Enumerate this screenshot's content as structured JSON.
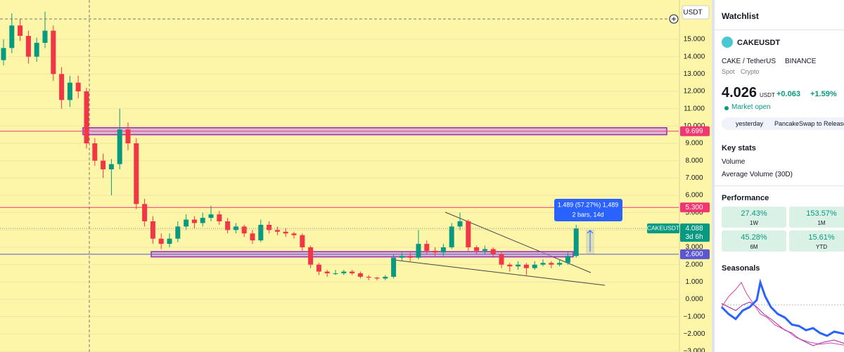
{
  "chart_data": {
    "type": "candlestick",
    "symbol": "CAKEUSDT",
    "currency": "USDT",
    "candles": [
      [
        13.8,
        15.0,
        13.5,
        14.5
      ],
      [
        14.5,
        16.5,
        14.2,
        15.8
      ],
      [
        15.8,
        16.2,
        14.9,
        15.2
      ],
      [
        15.2,
        15.5,
        13.6,
        14.0
      ],
      [
        14.0,
        15.1,
        13.7,
        14.8
      ],
      [
        14.8,
        16.6,
        14.5,
        15.5
      ],
      [
        15.5,
        15.8,
        12.6,
        13.0
      ],
      [
        13.0,
        13.4,
        11.0,
        11.5
      ],
      [
        11.5,
        12.9,
        11.1,
        12.5
      ],
      [
        12.5,
        12.9,
        11.6,
        12.0
      ],
      [
        12.0,
        12.2,
        8.7,
        9.0
      ],
      [
        9.0,
        9.3,
        7.7,
        8.0
      ],
      [
        8.0,
        8.4,
        7.0,
        7.5
      ],
      [
        7.5,
        8.1,
        6.0,
        7.8
      ],
      [
        7.8,
        11.0,
        7.5,
        9.8
      ],
      [
        9.8,
        10.2,
        8.6,
        9.0
      ],
      [
        9.0,
        9.3,
        5.2,
        5.5
      ],
      [
        5.5,
        5.8,
        4.2,
        4.5
      ],
      [
        4.5,
        4.8,
        3.2,
        3.5
      ],
      [
        3.5,
        3.8,
        2.9,
        3.2
      ],
      [
        3.2,
        3.8,
        3.0,
        3.5
      ],
      [
        3.5,
        4.5,
        3.3,
        4.2
      ],
      [
        4.2,
        4.9,
        4.0,
        4.6
      ],
      [
        4.6,
        4.8,
        4.1,
        4.4
      ],
      [
        4.4,
        5.0,
        4.2,
        4.7
      ],
      [
        4.7,
        5.4,
        4.5,
        4.9
      ],
      [
        4.9,
        5.1,
        4.3,
        4.5
      ],
      [
        4.5,
        4.7,
        3.8,
        4.0
      ],
      [
        4.0,
        4.4,
        3.8,
        4.2
      ],
      [
        4.2,
        4.3,
        3.6,
        3.8
      ],
      [
        3.8,
        4.0,
        3.2,
        3.4
      ],
      [
        3.4,
        4.6,
        3.3,
        4.3
      ],
      [
        4.3,
        4.5,
        3.8,
        4.0
      ],
      [
        4.0,
        4.2,
        3.7,
        3.9
      ],
      [
        3.9,
        4.1,
        3.6,
        3.8
      ],
      [
        3.8,
        3.9,
        3.5,
        3.7
      ],
      [
        3.7,
        3.8,
        2.8,
        3.0
      ],
      [
        3.0,
        3.1,
        1.8,
        2.0
      ],
      [
        2.0,
        2.1,
        1.4,
        1.6
      ],
      [
        1.6,
        1.7,
        1.3,
        1.5
      ],
      [
        1.5,
        1.7,
        1.4,
        1.5
      ],
      [
        1.5,
        1.7,
        1.4,
        1.6
      ],
      [
        1.6,
        1.7,
        1.4,
        1.5
      ],
      [
        1.5,
        1.6,
        1.2,
        1.3
      ],
      [
        1.3,
        1.4,
        1.1,
        1.25
      ],
      [
        1.25,
        1.3,
        1.1,
        1.2
      ],
      [
        1.2,
        1.4,
        1.1,
        1.3
      ],
      [
        1.3,
        2.6,
        1.2,
        2.4
      ],
      [
        2.4,
        2.7,
        2.2,
        2.5
      ],
      [
        2.5,
        2.7,
        2.2,
        2.4
      ],
      [
        2.4,
        4.0,
        2.3,
        3.2
      ],
      [
        3.2,
        3.4,
        2.6,
        2.8
      ],
      [
        2.8,
        3.0,
        2.5,
        2.7
      ],
      [
        2.7,
        3.2,
        2.5,
        3.0
      ],
      [
        3.0,
        4.4,
        2.9,
        4.2
      ],
      [
        4.2,
        5.0,
        4.0,
        4.5
      ],
      [
        4.5,
        4.6,
        2.8,
        3.0
      ],
      [
        3.0,
        3.1,
        2.6,
        2.8
      ],
      [
        2.8,
        3.1,
        2.6,
        2.9
      ],
      [
        2.9,
        3.0,
        2.4,
        2.6
      ],
      [
        2.6,
        2.7,
        1.8,
        2.0
      ],
      [
        2.0,
        2.1,
        1.6,
        1.9
      ],
      [
        1.9,
        2.2,
        1.7,
        2.0
      ],
      [
        2.0,
        2.1,
        1.4,
        1.8
      ],
      [
        1.8,
        2.2,
        1.7,
        2.0
      ],
      [
        2.0,
        2.3,
        1.9,
        2.1
      ],
      [
        2.1,
        2.2,
        1.8,
        2.0
      ],
      [
        2.0,
        2.3,
        1.9,
        2.1
      ],
      [
        2.1,
        2.7,
        2.0,
        2.5
      ],
      [
        2.5,
        4.3,
        2.4,
        4.088
      ]
    ],
    "up_color": "#089981",
    "down_color": "#f23645",
    "ylim": [
      -3.04,
      17.27
    ],
    "yticks": [
      {
        "value": -3,
        "label": "−3.000"
      },
      {
        "value": -2,
        "label": "−2.000"
      },
      {
        "value": -1,
        "label": "−1.000"
      },
      {
        "value": 0,
        "label": "0.000"
      },
      {
        "value": 1,
        "label": "1.000"
      },
      {
        "value": 2,
        "label": "2.000"
      },
      {
        "value": 3,
        "label": "3.000"
      },
      {
        "value": 4,
        "label": "4.000"
      },
      {
        "value": 5,
        "label": "5.000"
      },
      {
        "value": 6,
        "label": "6.000"
      },
      {
        "value": 7,
        "label": "7.000"
      },
      {
        "value": 8,
        "label": "8.000"
      },
      {
        "value": 9,
        "label": "9.000"
      },
      {
        "value": 10,
        "label": "10.000"
      },
      {
        "value": 11,
        "label": "11.000"
      },
      {
        "value": 12,
        "label": "12.000"
      },
      {
        "value": 13,
        "label": "13.000"
      },
      {
        "value": 14,
        "label": "14.000"
      },
      {
        "value": 15,
        "label": "15.000"
      }
    ],
    "grid": true,
    "levels": [
      {
        "price": 9.699,
        "color": "#f23672"
      },
      {
        "price": {
          "value": 5.3,
          "label": "5.300"
        },
        "color": "#f23672"
      },
      {
        "price": {
          "value": 2.6,
          "label": "2.600"
        },
        "color": "#5b57d1"
      }
    ],
    "zones": [
      {
        "low": 9.5,
        "high": 9.9
      },
      {
        "low": 2.45,
        "high": 2.75
      }
    ],
    "last_price": 4.088,
    "countdown": "3d 6h",
    "measure": {
      "text": "1.489 (57.27%) 1,489",
      "bars": "2 bars, 14d"
    }
  },
  "panel": {
    "title": "Watchlist",
    "symbol": "CAKEUSDT",
    "pair": "CAKE / TetherUS",
    "exchange": "BINANCE",
    "market": "Spot",
    "asset_class": "Crypto",
    "price": "4.026",
    "currency": "USDT",
    "change": "+0.063",
    "change_pct": "+1.59%",
    "status": "Market open",
    "news": {
      "time": "yesterday",
      "headline": "PancakeSwap to Release Sp"
    },
    "key_stats": {
      "title": "Key stats",
      "rows": [
        "Volume",
        "Average Volume (30D)"
      ]
    },
    "performance": {
      "title": "Performance",
      "cards": [
        {
          "value": "27.43%",
          "period": "1W"
        },
        {
          "value": "153.57%",
          "period": "1M"
        },
        {
          "value": "45.28%",
          "period": "6M"
        },
        {
          "value": "15.61%",
          "period": "YTD"
        }
      ]
    },
    "seasonals": "Seasonals"
  }
}
